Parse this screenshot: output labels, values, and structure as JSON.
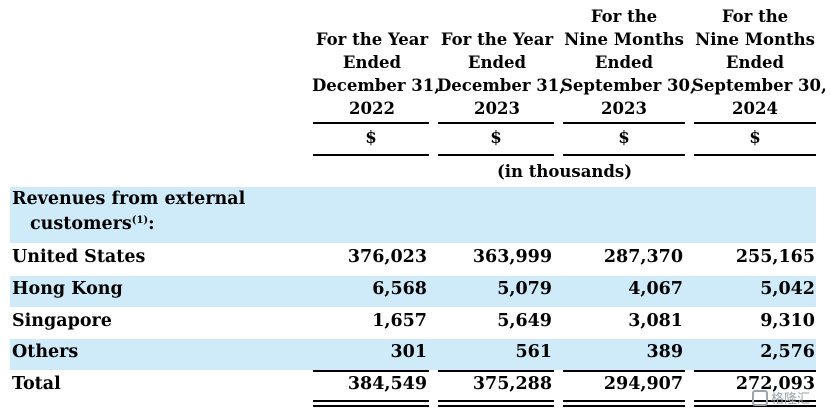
{
  "header": {
    "columns": [
      {
        "lines": [
          "For the Year",
          "Ended",
          "December 31,",
          "2022"
        ],
        "currency": "$"
      },
      {
        "lines": [
          "For the Year",
          "Ended",
          "December 31,",
          "2023"
        ],
        "currency": "$"
      },
      {
        "lines": [
          "For the",
          "Nine Months",
          "Ended",
          "September 30,",
          "2023"
        ],
        "currency": "$"
      },
      {
        "lines": [
          "For the",
          "Nine Months",
          "Ended",
          "September 30,",
          "2024"
        ],
        "currency": "$"
      }
    ],
    "units": "(in thousands)"
  },
  "section": {
    "label_line1": "Revenues from external",
    "label_line2": "customers",
    "footnote": "(1)",
    "colon": ":"
  },
  "rows": [
    {
      "label": "United States",
      "values": [
        "376,023",
        "363,999",
        "287,370",
        "255,165"
      ]
    },
    {
      "label": "Hong Kong",
      "values": [
        "6,568",
        "5,079",
        "4,067",
        "5,042"
      ]
    },
    {
      "label": "Singapore",
      "values": [
        "1,657",
        "5,649",
        "3,081",
        "9,310"
      ]
    },
    {
      "label": "Others",
      "values": [
        "301",
        "561",
        "389",
        "2,576"
      ]
    }
  ],
  "total": {
    "label": "Total",
    "values": [
      "384,549",
      "375,288",
      "294,907",
      "272,093"
    ]
  },
  "colors": {
    "band": "#cfeaf8",
    "text": "#000000"
  },
  "watermark": {
    "text": "格隆汇"
  }
}
